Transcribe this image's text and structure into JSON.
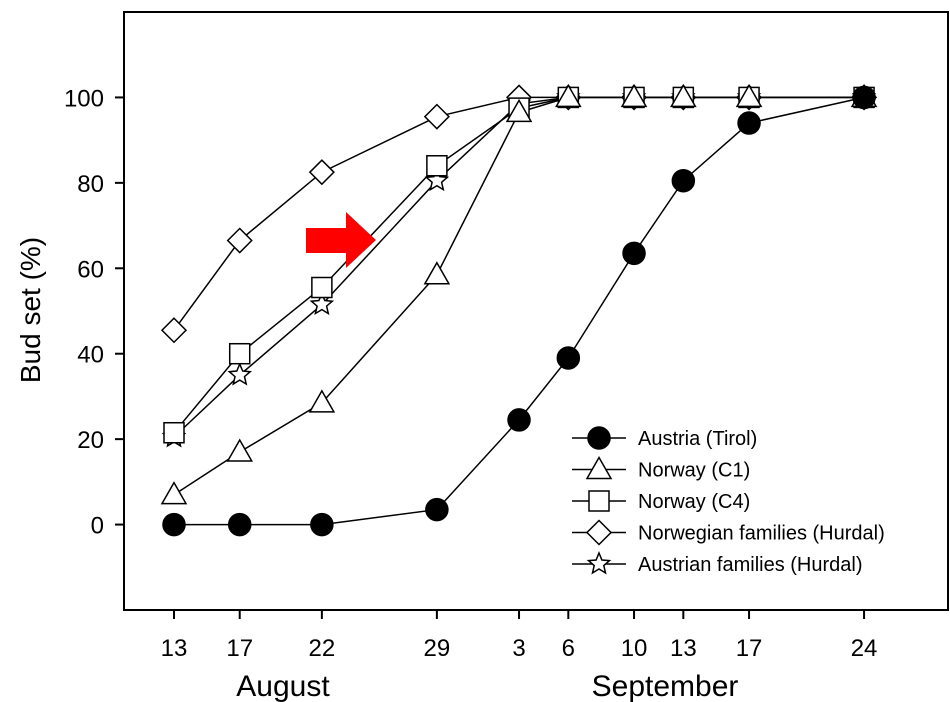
{
  "chart_data": {
    "type": "line",
    "title": "",
    "ylabel": "Bud set (%)",
    "ylim": [
      -20,
      120
    ],
    "yticks": [
      0,
      20,
      40,
      60,
      80,
      100
    ],
    "x_dates": [
      "Aug 13",
      "Aug 17",
      "Aug 22",
      "Aug 29",
      "Sep 3",
      "Sep 6",
      "Sep 10",
      "Sep 13",
      "Sep 17",
      "Sep 24"
    ],
    "x_tick_labels": [
      "13",
      "17",
      "22",
      "29",
      "3",
      "6",
      "10",
      "13",
      "17",
      "24"
    ],
    "x_groups": [
      "August",
      "September"
    ],
    "grid": false,
    "legend_position": "bottom-right",
    "series": [
      {
        "name": "Austria (Tirol)",
        "marker": "filled-circle",
        "points": [
          [
            "Aug 13",
            0
          ],
          [
            "Aug 17",
            0
          ],
          [
            "Aug 22",
            0
          ],
          [
            "Aug 29",
            3.5
          ],
          [
            "Sep 3",
            24.5
          ],
          [
            "Sep 6",
            39
          ],
          [
            "Sep 10",
            63.5
          ],
          [
            "Sep 13",
            80.5
          ],
          [
            "Sep 17",
            94
          ],
          [
            "Sep 24",
            100
          ]
        ]
      },
      {
        "name": "Norway (C1)",
        "marker": "open-triangle",
        "points": [
          [
            "Aug 13",
            7
          ],
          [
            "Aug 17",
            17
          ],
          [
            "Aug 22",
            28.5
          ],
          [
            "Aug 29",
            58.5
          ],
          [
            "Sep 3",
            96.5
          ],
          [
            "Sep 6",
            100
          ],
          [
            "Sep 10",
            100
          ],
          [
            "Sep 13",
            100
          ],
          [
            "Sep 17",
            100
          ],
          [
            "Sep 24",
            100
          ]
        ]
      },
      {
        "name": "Norway (C4)",
        "marker": "open-square",
        "points": [
          [
            "Aug 13",
            21.5
          ],
          [
            "Aug 17",
            40
          ],
          [
            "Aug 22",
            55.5
          ],
          [
            "Aug 29",
            84
          ],
          [
            "Sep 3",
            97.5
          ],
          [
            "Sep 6",
            100
          ],
          [
            "Sep 10",
            100
          ],
          [
            "Sep 13",
            100
          ],
          [
            "Sep 17",
            100
          ],
          [
            "Sep 24",
            100
          ]
        ]
      },
      {
        "name": "Norwegian families (Hurdal)",
        "marker": "open-diamond",
        "points": [
          [
            "Aug 13",
            45.5
          ],
          [
            "Aug 17",
            66.5
          ],
          [
            "Aug 22",
            82.5
          ],
          [
            "Aug 29",
            95.5
          ],
          [
            "Sep 3",
            100
          ],
          [
            "Sep 6",
            100
          ],
          [
            "Sep 10",
            100
          ],
          [
            "Sep 13",
            100
          ],
          [
            "Sep 17",
            100
          ],
          [
            "Sep 24",
            100
          ]
        ]
      },
      {
        "name": "Austrian families (Hurdal)",
        "marker": "open-star",
        "points": [
          [
            "Aug 13",
            20.5
          ],
          [
            "Aug 17",
            35
          ],
          [
            "Aug 22",
            51.5
          ],
          [
            "Aug 29",
            80.5
          ],
          [
            "Sep 3",
            98.5
          ],
          [
            "Sep 6",
            100
          ],
          [
            "Sep 10",
            100
          ],
          [
            "Sep 13",
            100
          ],
          [
            "Sep 17",
            100
          ],
          [
            "Sep 24",
            100
          ]
        ]
      }
    ],
    "annotations": [
      {
        "type": "arrow",
        "color": "#ff0000",
        "points_to_series": "Norway (C4)"
      }
    ]
  }
}
